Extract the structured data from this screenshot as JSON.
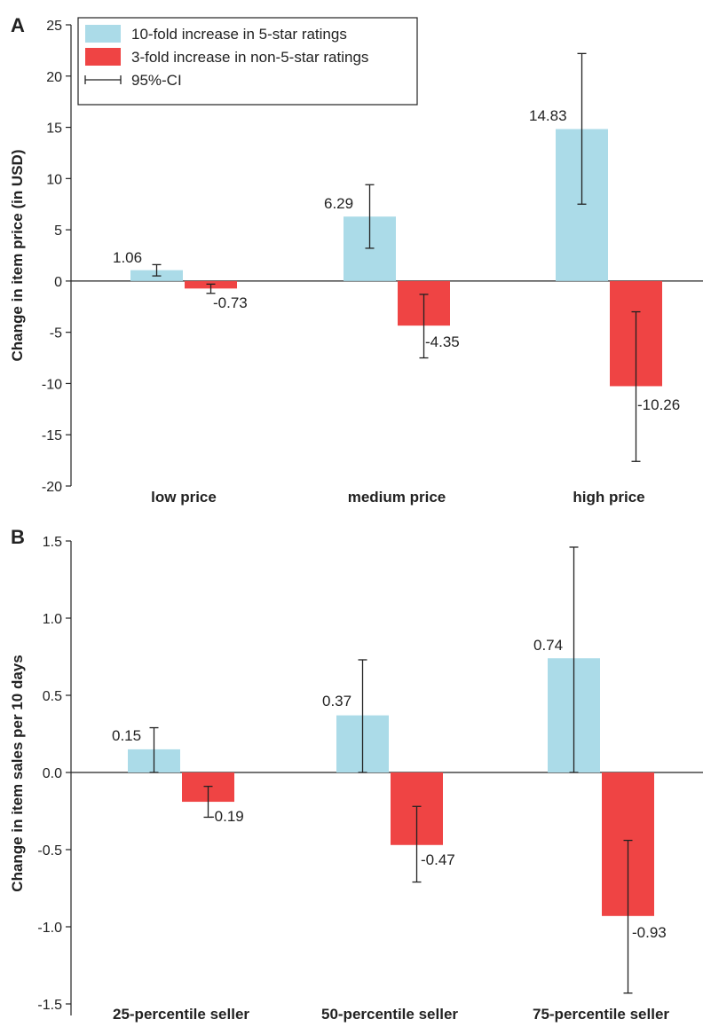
{
  "chart_data": [
    {
      "type": "bar",
      "panel": "A",
      "ylabel": "Change in item price (in USD)",
      "xlabel": "",
      "ylim": [
        -20,
        25
      ],
      "yticks": [
        25,
        20,
        15,
        10,
        5,
        0,
        -5,
        -10,
        -15,
        -20
      ],
      "categories": [
        "low price",
        "medium price",
        "high price"
      ],
      "series": [
        {
          "name": "10-fold increase in 5-star ratings",
          "color": "#abdbe8",
          "values": [
            1.06,
            6.29,
            14.83
          ],
          "labels": [
            "1.06",
            "6.29",
            "14.83"
          ],
          "ci": [
            [
              0.5,
              1.6
            ],
            [
              3.2,
              9.4
            ],
            [
              7.5,
              22.2
            ]
          ]
        },
        {
          "name": "3-fold increase in non-5-star ratings",
          "color": "#ef4444",
          "values": [
            -0.73,
            -4.35,
            -10.26
          ],
          "labels": [
            "-0.73",
            "-4.35",
            "-10.26"
          ],
          "ci": [
            [
              -1.2,
              -0.3
            ],
            [
              -7.5,
              -1.3
            ],
            [
              -17.6,
              -3.0
            ]
          ]
        }
      ],
      "legend": {
        "placement": "top-left",
        "ci_label": "95%-CI"
      }
    },
    {
      "type": "bar",
      "panel": "B",
      "ylabel": "Change in item sales per 10 days",
      "xlabel": "",
      "ylim": [
        -1.5,
        1.5
      ],
      "yticks": [
        "1.5",
        "1.0",
        "0.5",
        "0.0",
        "-0.5",
        "-1.0",
        "-1.5"
      ],
      "categories": [
        "25-percentile seller",
        "50-percentile seller",
        "75-percentile seller"
      ],
      "series": [
        {
          "name": "10-fold increase in 5-star ratings",
          "color": "#abdbe8",
          "values": [
            0.15,
            0.37,
            0.74
          ],
          "labels": [
            "0.15",
            "0.37",
            "0.74"
          ],
          "ci": [
            [
              0.0,
              0.29
            ],
            [
              0.0,
              0.73
            ],
            [
              0.0,
              1.46
            ]
          ]
        },
        {
          "name": "3-fold increase in non-5-star ratings",
          "color": "#ef4444",
          "values": [
            -0.19,
            -0.47,
            -0.93
          ],
          "labels": [
            "-0.19",
            "-0.47",
            "-0.93"
          ],
          "ci": [
            [
              -0.29,
              -0.09
            ],
            [
              -0.71,
              -0.22
            ],
            [
              -1.43,
              -0.44
            ]
          ]
        }
      ]
    }
  ]
}
